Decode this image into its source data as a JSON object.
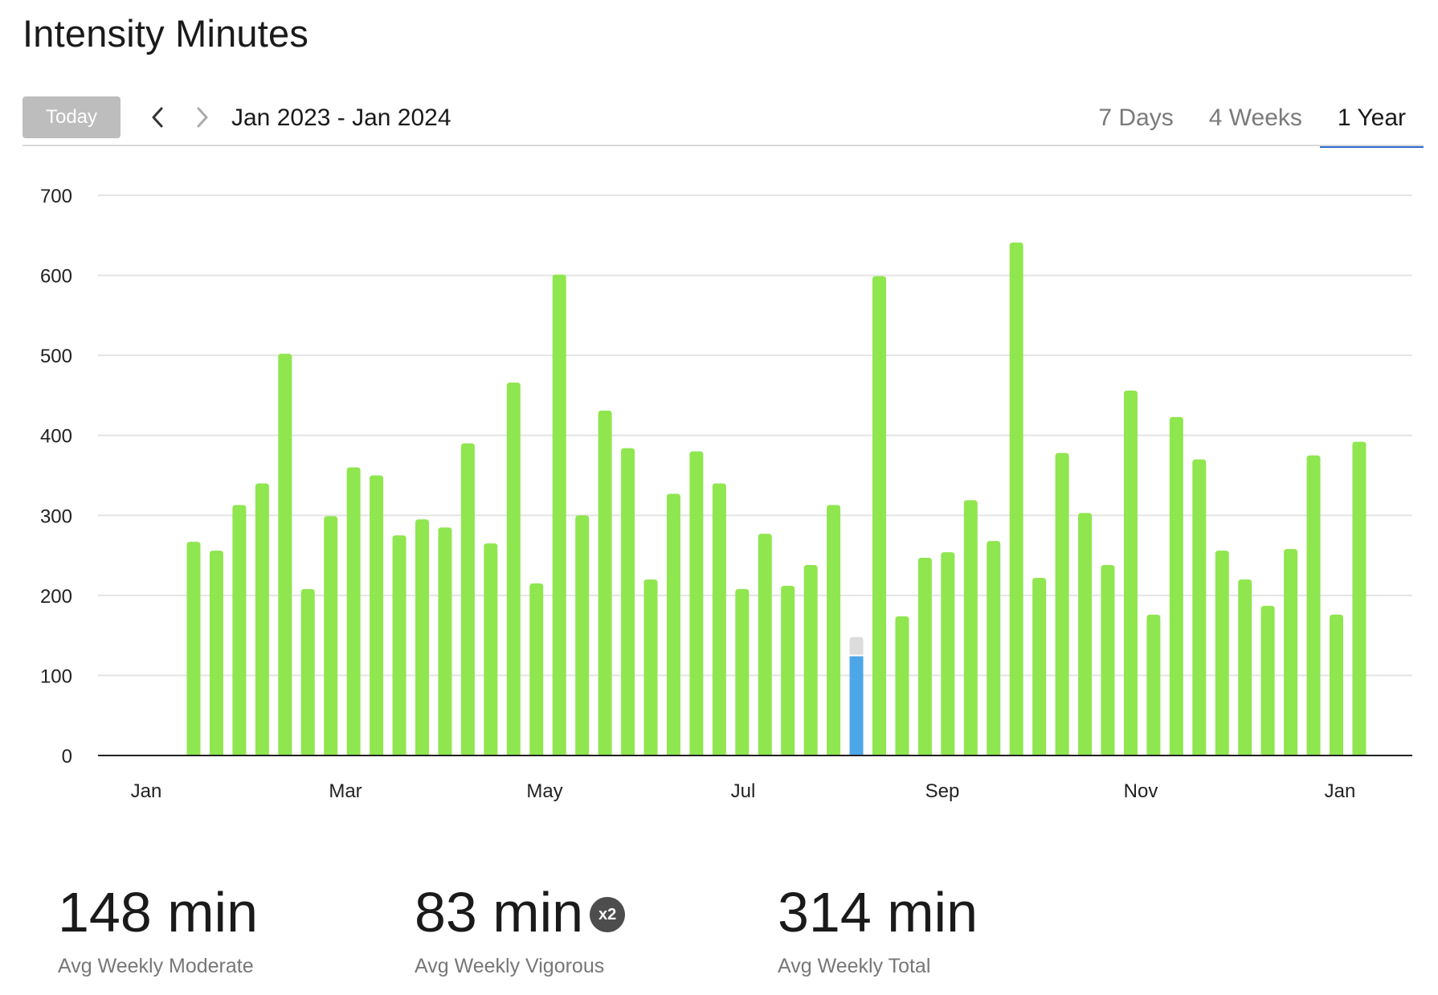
{
  "header": {
    "title": "Intensity Minutes"
  },
  "toolbar": {
    "today_label": "Today",
    "date_range": "Jan 2023 - Jan 2024",
    "tabs": [
      {
        "label": "7 Days",
        "active": false
      },
      {
        "label": "4 Weeks",
        "active": false
      },
      {
        "label": "1 Year",
        "active": true
      }
    ]
  },
  "colors": {
    "bar": "#8fe64f",
    "bar_selected": "#4da6e8",
    "bar_selected_overlay": "#dcdcdc",
    "axis": "#222222",
    "grid": "#e4e4e4"
  },
  "chart_data": {
    "type": "bar",
    "ylim": [
      0,
      700
    ],
    "yticks": [
      0,
      100,
      200,
      300,
      400,
      500,
      600,
      700
    ],
    "xticks": [
      "Jan",
      "Mar",
      "May",
      "Jul",
      "Sep",
      "Nov",
      "Jan"
    ],
    "grid": true,
    "selected_index": 29,
    "selected_value": 148,
    "selected_highlight_value": 124,
    "values": [
      267,
      256,
      313,
      340,
      502,
      208,
      299,
      360,
      350,
      275,
      295,
      285,
      390,
      265,
      466,
      215,
      601,
      300,
      431,
      384,
      220,
      327,
      380,
      340,
      208,
      277,
      212,
      238,
      313,
      148,
      599,
      174,
      247,
      254,
      319,
      268,
      641,
      222,
      378,
      303,
      238,
      456,
      176,
      423,
      370,
      256,
      220,
      187,
      258,
      375,
      176,
      392
    ]
  },
  "stats": [
    {
      "value": "148 min",
      "label": "Avg Weekly Moderate",
      "badge": ""
    },
    {
      "value": "83 min",
      "label": "Avg Weekly Vigorous",
      "badge": "x2"
    },
    {
      "value": "314 min",
      "label": "Avg Weekly Total",
      "badge": ""
    }
  ]
}
